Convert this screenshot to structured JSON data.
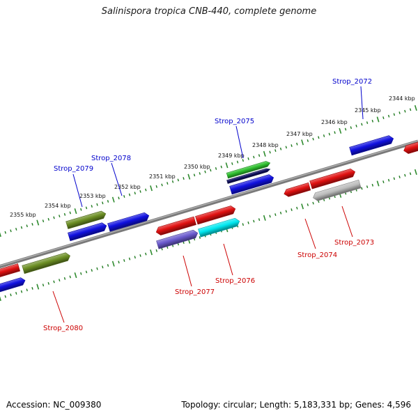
{
  "title": "Salinispora tropica CNB-440, complete genome",
  "footer": {
    "accession": "Accession: NC_009380",
    "info": "Topology: circular; Length: 5,183,331 bp; Genes: 4,596"
  },
  "colors": {
    "backbone": "#7a7a7a",
    "tick_dots": "#1f7a1f",
    "tick_major": "#2e8b2e",
    "forward_label": "#0000cc",
    "reverse_label": "#cc0000",
    "red": "#e01010",
    "blue": "#1010e0",
    "olive": "#6b8e23",
    "green": "#2ec02e",
    "navy": "#101060",
    "cyan": "#00e8f0",
    "slate": "#6a5acd",
    "gray": "#bcbcbc"
  },
  "kbp_labels": [
    "2355 kbp",
    "2354 kbp",
    "2353 kbp",
    "2352 kbp",
    "2351 kbp",
    "2350 kbp",
    "2349 kbp",
    "2348 kbp",
    "2347 kbp",
    "2346 kbp",
    "2345 kbp",
    "2344 kbp"
  ],
  "gene_labels_forward": [
    "Strop_2079",
    "Strop_2078",
    "Strop_2075",
    "Strop_2072"
  ],
  "gene_labels_reverse": [
    "Strop_2080",
    "Strop_2077",
    "Strop_2076",
    "Strop_2074",
    "Strop_2073"
  ],
  "gene_color_names": [
    "red",
    "olive",
    "blue",
    "blue",
    "olive",
    "blue",
    "red",
    "red",
    "slate",
    "cyan",
    "green",
    "navy",
    "blue",
    "red",
    "red",
    "gray",
    "blue",
    "red"
  ]
}
